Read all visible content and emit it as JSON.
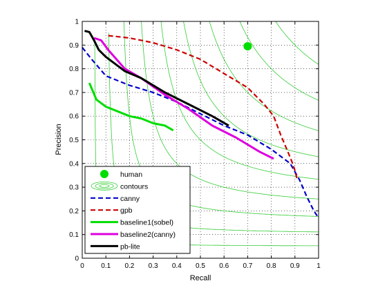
{
  "chart_data": {
    "type": "line",
    "title": "",
    "xlabel": "Recall",
    "ylabel": "Precision",
    "xlim": [
      0,
      1
    ],
    "ylim": [
      0,
      1
    ],
    "x_ticks": [
      "0",
      "0.1",
      "0.2",
      "0.3",
      "0.4",
      "0.5",
      "0.6",
      "0.7",
      "0.8",
      "0.9",
      "1"
    ],
    "y_ticks": [
      "0",
      "0.1",
      "0.2",
      "0.3",
      "0.4",
      "0.5",
      "0.6",
      "0.7",
      "0.8",
      "0.9",
      "1"
    ],
    "grid": true,
    "grid_style": "dotted",
    "legend_position": "bottom-left",
    "contour_levels": [
      0.1,
      0.2,
      0.3,
      0.4,
      0.5,
      0.6,
      0.7,
      0.8,
      0.9
    ],
    "series": [
      {
        "name": "human",
        "kind": "point",
        "color": "#00dd00",
        "points": [
          [
            0.7,
            0.895
          ]
        ]
      },
      {
        "name": "contours",
        "kind": "contour",
        "color": "#33cc33"
      },
      {
        "name": "canny",
        "kind": "line",
        "style": "dashed",
        "color": "#0000cc",
        "points": [
          [
            0.0,
            0.89
          ],
          [
            0.04,
            0.84
          ],
          [
            0.1,
            0.77
          ],
          [
            0.2,
            0.73
          ],
          [
            0.3,
            0.7
          ],
          [
            0.4,
            0.66
          ],
          [
            0.5,
            0.61
          ],
          [
            0.6,
            0.56
          ],
          [
            0.7,
            0.52
          ],
          [
            0.8,
            0.46
          ],
          [
            0.88,
            0.4
          ],
          [
            0.92,
            0.33
          ],
          [
            0.95,
            0.26
          ],
          [
            0.98,
            0.2
          ],
          [
            1.0,
            0.17
          ]
        ]
      },
      {
        "name": "gpb",
        "kind": "line",
        "style": "dashed",
        "color": "#cc0000",
        "points": [
          [
            0.11,
            0.94
          ],
          [
            0.2,
            0.93
          ],
          [
            0.3,
            0.91
          ],
          [
            0.4,
            0.88
          ],
          [
            0.5,
            0.84
          ],
          [
            0.6,
            0.78
          ],
          [
            0.7,
            0.72
          ],
          [
            0.77,
            0.65
          ],
          [
            0.81,
            0.6
          ],
          [
            0.84,
            0.52
          ],
          [
            0.87,
            0.45
          ],
          [
            0.89,
            0.4
          ],
          [
            0.9,
            0.37
          ],
          [
            0.91,
            0.33
          ]
        ]
      },
      {
        "name": "baseline1(sobel)",
        "kind": "line",
        "style": "solid",
        "color": "#00dd00",
        "points": [
          [
            0.03,
            0.74
          ],
          [
            0.06,
            0.67
          ],
          [
            0.1,
            0.64
          ],
          [
            0.15,
            0.62
          ],
          [
            0.2,
            0.6
          ],
          [
            0.25,
            0.59
          ],
          [
            0.3,
            0.57
          ],
          [
            0.35,
            0.56
          ],
          [
            0.385,
            0.54
          ]
        ]
      },
      {
        "name": "baseline2(canny)",
        "kind": "line",
        "style": "solid",
        "color": "#dd00dd",
        "points": [
          [
            0.05,
            0.93
          ],
          [
            0.08,
            0.92
          ],
          [
            0.11,
            0.88
          ],
          [
            0.18,
            0.8
          ],
          [
            0.25,
            0.76
          ],
          [
            0.35,
            0.69
          ],
          [
            0.45,
            0.63
          ],
          [
            0.55,
            0.56
          ],
          [
            0.65,
            0.51
          ],
          [
            0.75,
            0.45
          ],
          [
            0.81,
            0.42
          ]
        ]
      },
      {
        "name": "pb-lite",
        "kind": "line",
        "style": "solid",
        "color": "#000000",
        "points": [
          [
            0.01,
            0.96
          ],
          [
            0.03,
            0.955
          ],
          [
            0.05,
            0.92
          ],
          [
            0.07,
            0.88
          ],
          [
            0.1,
            0.85
          ],
          [
            0.14,
            0.82
          ],
          [
            0.18,
            0.79
          ],
          [
            0.25,
            0.76
          ],
          [
            0.35,
            0.7
          ],
          [
            0.45,
            0.65
          ],
          [
            0.55,
            0.6
          ],
          [
            0.62,
            0.56
          ]
        ]
      }
    ]
  }
}
